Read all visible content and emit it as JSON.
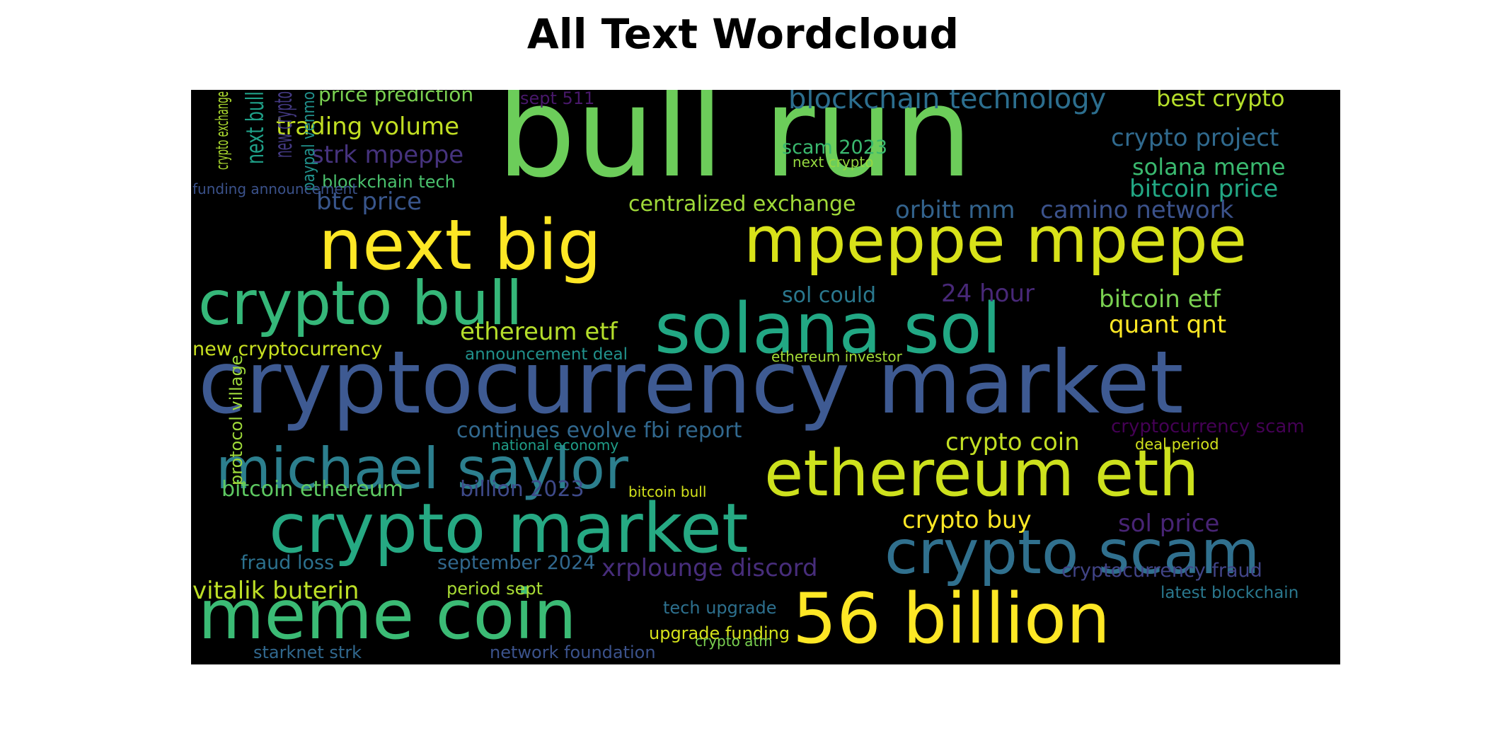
{
  "chart_data": {
    "type": "wordcloud",
    "title": "All Text Wordcloud",
    "background": "#000000",
    "colormap": "viridis",
    "words": [
      {
        "text": "bull run",
        "color": "#6ccd5a"
      },
      {
        "text": "cryptocurrency market",
        "color": "#3e5a92"
      },
      {
        "text": "next big",
        "color": "#fde725"
      },
      {
        "text": "mpeppe mpepe",
        "color": "#d8e219"
      },
      {
        "text": "crypto bull",
        "color": "#35b779"
      },
      {
        "text": "solana sol",
        "color": "#22a884"
      },
      {
        "text": "michael saylor",
        "color": "#2c7f8e"
      },
      {
        "text": "ethereum eth",
        "color": "#cde11d"
      },
      {
        "text": "crypto market",
        "color": "#26a983"
      },
      {
        "text": "crypto scam",
        "color": "#30708e"
      },
      {
        "text": "meme coin",
        "color": "#3bbb75"
      },
      {
        "text": "56 billion",
        "color": "#fde725"
      },
      {
        "text": "blockchain technology",
        "color": "#2c6e8e"
      },
      {
        "text": "best crypto",
        "color": "#b5de2b"
      },
      {
        "text": "crypto project",
        "color": "#306a8e"
      },
      {
        "text": "trading volume",
        "color": "#c2df23"
      },
      {
        "text": "price prediction",
        "color": "#7ad151"
      },
      {
        "text": "sept 511",
        "color": "#48186a"
      },
      {
        "text": "strk mpeppe",
        "color": "#46337e"
      },
      {
        "text": "scam 2023",
        "color": "#3ab96f"
      },
      {
        "text": "next crypto",
        "color": "#95d840"
      },
      {
        "text": "solana meme",
        "color": "#3ab96f"
      },
      {
        "text": "bitcoin price",
        "color": "#22a884"
      },
      {
        "text": "blockchain tech",
        "color": "#4ac16d"
      },
      {
        "text": "btc price",
        "color": "#39568c"
      },
      {
        "text": "centralized exchange",
        "color": "#a0da39"
      },
      {
        "text": "orbitt mm",
        "color": "#33638d"
      },
      {
        "text": "camino network",
        "color": "#3b528b"
      },
      {
        "text": "new crypto",
        "color": "#443a83"
      },
      {
        "text": "next bull",
        "color": "#1fa088"
      },
      {
        "text": "paypal venmo",
        "color": "#21918c"
      },
      {
        "text": "crypto exchange",
        "color": "#addc30"
      },
      {
        "text": "funding announcement",
        "color": "#3b528b"
      },
      {
        "text": "24 hour",
        "color": "#482878"
      },
      {
        "text": "sol could",
        "color": "#2a788e"
      },
      {
        "text": "bitcoin etf",
        "color": "#7ad151"
      },
      {
        "text": "quant qnt",
        "color": "#fde725"
      },
      {
        "text": "ethereum etf",
        "color": "#b5de2b"
      },
      {
        "text": "new cryptocurrency",
        "color": "#c8e020"
      },
      {
        "text": "announcement deal",
        "color": "#21918c"
      },
      {
        "text": "ethereum investor",
        "color": "#a5db36"
      },
      {
        "text": "continues evolve fbi report",
        "color": "#31688e"
      },
      {
        "text": "cryptocurrency scam",
        "color": "#440154"
      },
      {
        "text": "national economy",
        "color": "#1f9e89"
      },
      {
        "text": "deal period",
        "color": "#d0e11c"
      },
      {
        "text": "crypto coin",
        "color": "#c2df23"
      },
      {
        "text": "protocol village",
        "color": "#9fda3a"
      },
      {
        "text": "bitcoin ethereum",
        "color": "#5ec962"
      },
      {
        "text": "billion 2023",
        "color": "#3e4a89"
      },
      {
        "text": "bitcoin bull",
        "color": "#d2e21b"
      },
      {
        "text": "crypto buy",
        "color": "#fde725"
      },
      {
        "text": "sol price",
        "color": "#482475"
      },
      {
        "text": "fraud loss",
        "color": "#2c718e"
      },
      {
        "text": "september 2024",
        "color": "#31688e"
      },
      {
        "text": "xrplounge discord",
        "color": "#472d7b"
      },
      {
        "text": "cryptocurrency fraud",
        "color": "#414487"
      },
      {
        "text": "vitalik buterin",
        "color": "#bddf26"
      },
      {
        "text": "period sept",
        "color": "#a8db34"
      },
      {
        "text": "latest blockchain",
        "color": "#2a788e"
      },
      {
        "text": "tech upgrade",
        "color": "#2d708e"
      },
      {
        "text": "upgrade funding",
        "color": "#d5e21a"
      },
      {
        "text": "starknet strk",
        "color": "#31688e"
      },
      {
        "text": "network foundation",
        "color": "#3b528b"
      },
      {
        "text": "crypto atm",
        "color": "#7ad151"
      }
    ]
  }
}
